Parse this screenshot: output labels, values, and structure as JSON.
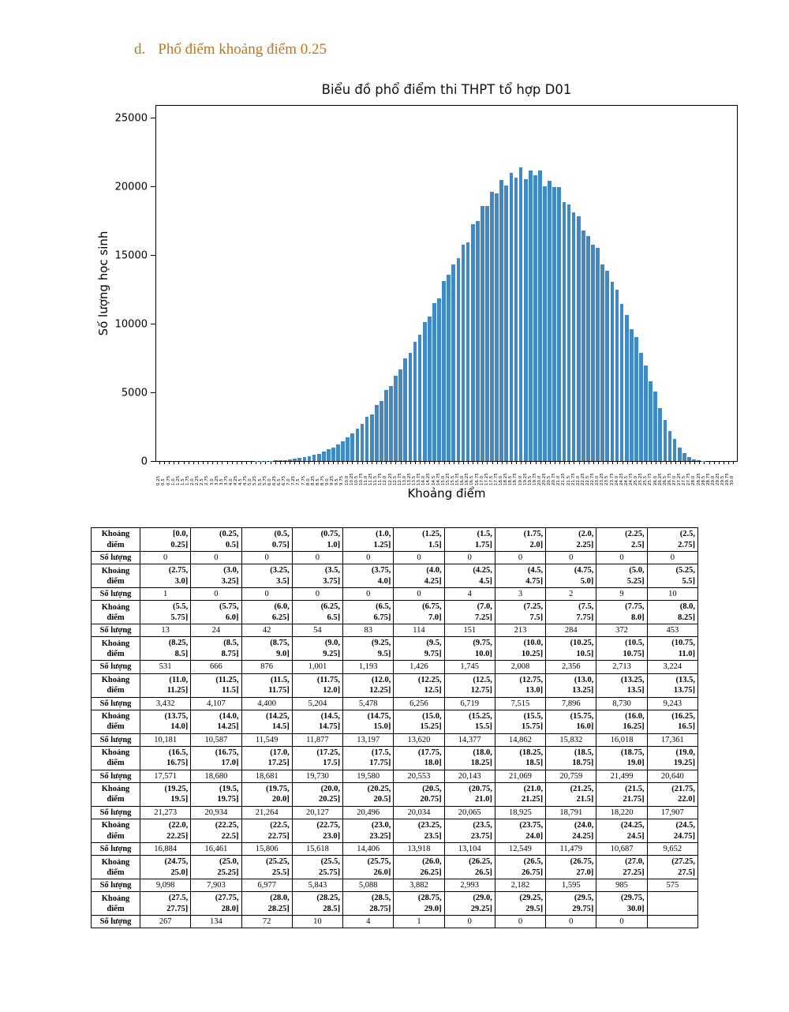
{
  "page": {
    "heading_index": "d.",
    "heading_text": "Phổ điểm khoảng điểm 0.25",
    "heading_color": "#c0761c"
  },
  "chart_data": {
    "type": "bar",
    "title": "Biểu đồ phổ điểm thi THPT tổ hợp D01",
    "xlabel": "Khoảng điểm",
    "ylabel": "Số lượng học sinh",
    "ylim": [
      0,
      26000
    ],
    "yticks": [
      0,
      5000,
      10000,
      15000,
      20000,
      25000
    ],
    "grid": false,
    "legend": "none",
    "bar_color": "#4089c7",
    "bin_start": 0,
    "bin_step": 0.25,
    "bin_count": 120,
    "categories": [
      "0.25",
      "0.5",
      "0.75",
      "1.0",
      "1.25",
      "1.5",
      "1.75",
      "2.0",
      "2.25",
      "2.5",
      "2.75",
      "3.0",
      "3.25",
      "3.5",
      "3.75",
      "4.0",
      "4.25",
      "4.5",
      "4.75",
      "5.0",
      "5.25",
      "5.5",
      "5.75",
      "6.0",
      "6.25",
      "6.5",
      "6.75",
      "7.0",
      "7.25",
      "7.5",
      "7.75",
      "8.0",
      "8.25",
      "8.5",
      "8.75",
      "9.0",
      "9.25",
      "9.5",
      "9.75",
      "10.0",
      "10.25",
      "10.5",
      "10.75",
      "11.0",
      "11.25",
      "11.5",
      "11.75",
      "12.0",
      "12.25",
      "12.5",
      "12.75",
      "13.0",
      "13.25",
      "13.5",
      "13.75",
      "14.0",
      "14.25",
      "14.5",
      "14.75",
      "15.0",
      "15.25",
      "15.5",
      "15.75",
      "16.0",
      "16.25",
      "16.5",
      "16.75",
      "17.0",
      "17.25",
      "17.5",
      "17.75",
      "18.0",
      "18.25",
      "18.5",
      "18.75",
      "19.0",
      "19.25",
      "19.5",
      "19.75",
      "20.0",
      "20.25",
      "20.5",
      "20.75",
      "21.0",
      "21.25",
      "21.5",
      "21.75",
      "22.0",
      "22.25",
      "22.5",
      "22.75",
      "23.0",
      "23.25",
      "23.5",
      "23.75",
      "24.0",
      "24.25",
      "24.5",
      "24.75",
      "25.0",
      "25.25",
      "25.5",
      "25.75",
      "26.0",
      "26.25",
      "26.5",
      "26.75",
      "27.0",
      "27.25",
      "27.5",
      "27.75",
      "28.0",
      "28.25",
      "28.5",
      "28.75",
      "29.0",
      "29.25",
      "29.5",
      "29.75",
      "30.0"
    ],
    "values": [
      0,
      0,
      0,
      0,
      0,
      0,
      0,
      0,
      0,
      0,
      0,
      1,
      0,
      0,
      0,
      0,
      0,
      4,
      3,
      2,
      9,
      10,
      13,
      24,
      42,
      54,
      83,
      114,
      151,
      213,
      284,
      372,
      453,
      531,
      666,
      876,
      1001,
      1193,
      1426,
      1745,
      2008,
      2356,
      2713,
      3224,
      3432,
      4107,
      4400,
      5204,
      5478,
      6256,
      6719,
      7515,
      7896,
      8730,
      9243,
      10181,
      10587,
      11549,
      11877,
      13197,
      13620,
      14377,
      14862,
      15832,
      16018,
      17361,
      17571,
      18680,
      18681,
      19730,
      19580,
      20553,
      20143,
      21069,
      20759,
      21499,
      20640,
      21273,
      20934,
      21264,
      20127,
      20496,
      20034,
      20065,
      18925,
      18791,
      18220,
      17907,
      16884,
      16461,
      15806,
      15618,
      14406,
      13918,
      13104,
      12549,
      11479,
      10687,
      9652,
      9098,
      7903,
      6977,
      5843,
      5088,
      3882,
      2993,
      2182,
      1595,
      985,
      575,
      267,
      134,
      72,
      10,
      4,
      1,
      0,
      0,
      0,
      0
    ]
  },
  "table": {
    "interval_label": "Khoảng điểm",
    "count_label": "Số lượng",
    "columns_per_row": 11
  }
}
